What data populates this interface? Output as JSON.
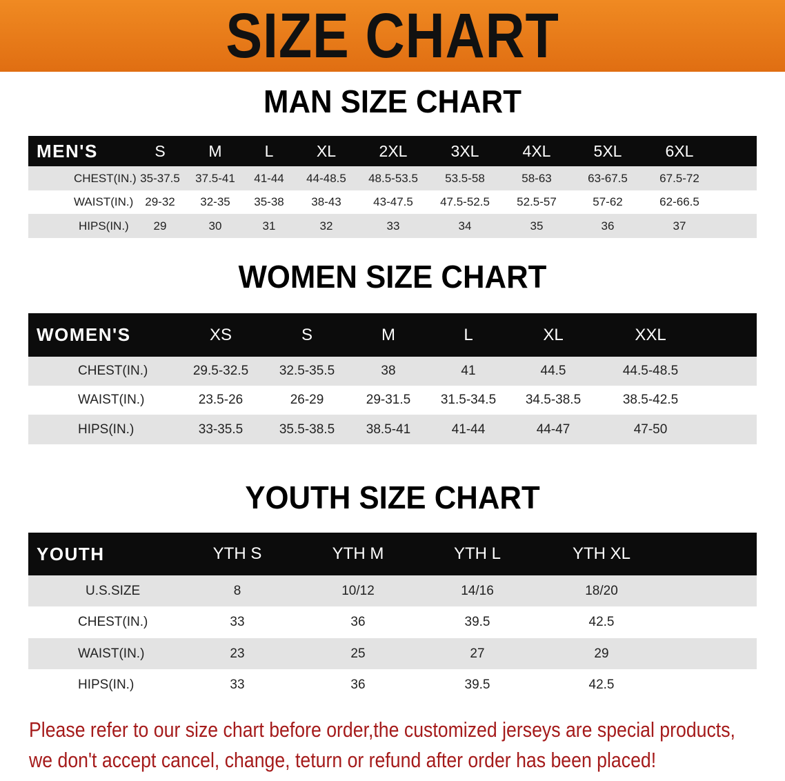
{
  "banner": {
    "title": "SIZE CHART",
    "color": "#e8781a"
  },
  "men": {
    "title": "MAN SIZE CHART",
    "header": [
      "MEN'S",
      "S",
      "M",
      "L",
      "XL",
      "2XL",
      "3XL",
      "4XL",
      "5XL",
      "6XL"
    ],
    "rows": [
      [
        "CHEST(IN.)",
        "35-37.5",
        "37.5-41",
        "41-44",
        "44-48.5",
        "48.5-53.5",
        "53.5-58",
        "58-63",
        "63-67.5",
        "67.5-72"
      ],
      [
        "WAIST(IN.)",
        "29-32",
        "32-35",
        "35-38",
        "38-43",
        "43-47.5",
        "47.5-52.5",
        "52.5-57",
        "57-62",
        "62-66.5"
      ],
      [
        "HIPS(IN.)",
        "29",
        "30",
        "31",
        "32",
        "33",
        "34",
        "35",
        "36",
        "37"
      ]
    ]
  },
  "women": {
    "title": "WOMEN SIZE CHART",
    "header": [
      "WOMEN'S",
      "XS",
      "S",
      "M",
      "L",
      "XL",
      "XXL"
    ],
    "rows": [
      [
        "CHEST(IN.)",
        "29.5-32.5",
        "32.5-35.5",
        "38",
        "41",
        "44.5",
        "44.5-48.5"
      ],
      [
        "WAIST(IN.)",
        "23.5-26",
        "26-29",
        "29-31.5",
        "31.5-34.5",
        "34.5-38.5",
        "38.5-42.5"
      ],
      [
        "HIPS(IN.)",
        "33-35.5",
        "35.5-38.5",
        "38.5-41",
        "41-44",
        "44-47",
        "47-50"
      ]
    ]
  },
  "youth": {
    "title": "YOUTH SIZE CHART",
    "header": [
      "YOUTH",
      "YTH S",
      "YTH M",
      "YTH L",
      "YTH XL"
    ],
    "rows": [
      [
        "U.S.SIZE",
        "8",
        "10/12",
        "14/16",
        "18/20"
      ],
      [
        "CHEST(IN.)",
        "33",
        "36",
        "39.5",
        "42.5"
      ],
      [
        "WAIST(IN.)",
        "23",
        "25",
        "27",
        "29"
      ],
      [
        "HIPS(IN.)",
        "33",
        "36",
        "39.5",
        "42.5"
      ]
    ]
  },
  "notice": {
    "line1": "Please refer to our size chart before order,the customized jerseys are special products,",
    "line2": "we don't accept cancel, change, teturn or refund after order has been placed!",
    "color": "#a51b1b"
  }
}
